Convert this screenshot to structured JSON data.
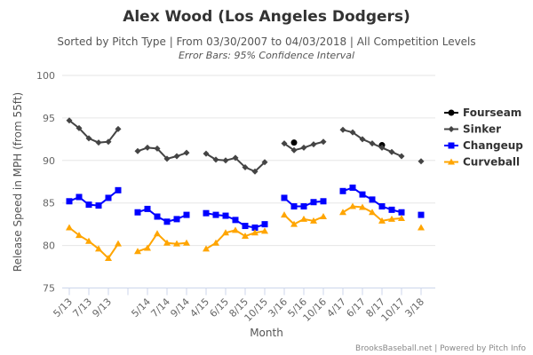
{
  "chart_data": {
    "type": "line",
    "title": "Alex Wood (Los Angeles Dodgers)",
    "subtitle": "Sorted by Pitch Type | From 03/30/2007 to 04/03/2018 | All Competition Levels",
    "subtitle2": "Error Bars: 95% Confidence Interval",
    "xlabel": "Month",
    "ylabel": "Release Speed in MPH (from 55ft)",
    "ylim": [
      75,
      100
    ],
    "yticks": [
      75,
      80,
      85,
      90,
      95,
      100
    ],
    "grid": true,
    "legend_position": "right",
    "credits": "BrooksBaseball.net | Powered by Pitch Info",
    "categories": [
      "5/13",
      "6/13",
      "7/13",
      "8/13",
      "9/13",
      "10/13",
      "",
      "4/14",
      "5/14",
      "6/14",
      "7/14",
      "8/14",
      "9/14",
      "",
      "4/15",
      "5/15",
      "6/15",
      "7/15",
      "8/15",
      "9/15",
      "10/15",
      "",
      "3/16",
      "4/16",
      "5/16",
      "9/16",
      "10/16",
      "",
      "4/17",
      "5/17",
      "6/17",
      "7/17",
      "8/17",
      "9/17",
      "10/17",
      "",
      "3/18"
    ],
    "tick_labels": [
      "5/13",
      "7/13",
      "9/13",
      "",
      "5/14",
      "7/14",
      "9/14",
      "4/15",
      "6/15",
      "8/15",
      "10/15",
      "3/16",
      "5/16",
      "10/16",
      "4/17",
      "6/17",
      "8/17",
      "10/17",
      "3/18"
    ],
    "series": [
      {
        "name": "Fourseam",
        "color": "#000000",
        "marker": "circle",
        "values": [
          null,
          null,
          null,
          null,
          null,
          null,
          null,
          null,
          null,
          null,
          null,
          null,
          null,
          null,
          null,
          null,
          null,
          null,
          null,
          null,
          null,
          null,
          null,
          92.1,
          null,
          null,
          null,
          null,
          null,
          null,
          null,
          null,
          91.8,
          null,
          null,
          null,
          null
        ]
      },
      {
        "name": "Sinker",
        "color": "#444444",
        "marker": "diamond",
        "values": [
          94.7,
          93.8,
          92.6,
          92.1,
          92.2,
          93.7,
          null,
          91.1,
          91.5,
          91.4,
          90.2,
          90.5,
          90.9,
          null,
          90.8,
          90.1,
          90.0,
          90.3,
          89.2,
          88.7,
          89.8,
          null,
          92.0,
          91.2,
          91.5,
          91.9,
          92.2,
          null,
          93.6,
          93.3,
          92.5,
          92.0,
          91.5,
          91.0,
          90.5,
          null,
          89.9
        ]
      },
      {
        "name": "Changeup",
        "color": "#0000ff",
        "marker": "square",
        "values": [
          85.2,
          85.7,
          84.8,
          84.7,
          85.6,
          86.5,
          null,
          83.9,
          84.3,
          83.4,
          82.8,
          83.1,
          83.6,
          null,
          83.8,
          83.6,
          83.5,
          83.0,
          82.3,
          82.1,
          82.5,
          null,
          85.6,
          84.6,
          84.6,
          85.1,
          85.2,
          null,
          86.4,
          86.8,
          86.0,
          85.4,
          84.6,
          84.2,
          83.9,
          null,
          83.6
        ]
      },
      {
        "name": "Curveball",
        "color": "#ffa500",
        "marker": "triangle",
        "values": [
          82.1,
          81.2,
          80.5,
          79.6,
          78.5,
          80.2,
          null,
          79.3,
          79.7,
          81.4,
          80.3,
          80.2,
          80.3,
          null,
          79.6,
          80.3,
          81.5,
          81.8,
          81.1,
          81.5,
          81.7,
          null,
          83.6,
          82.5,
          83.1,
          82.9,
          83.4,
          null,
          83.9,
          84.6,
          84.5,
          83.9,
          82.9,
          83.1,
          83.2,
          null,
          82.1
        ]
      }
    ]
  }
}
